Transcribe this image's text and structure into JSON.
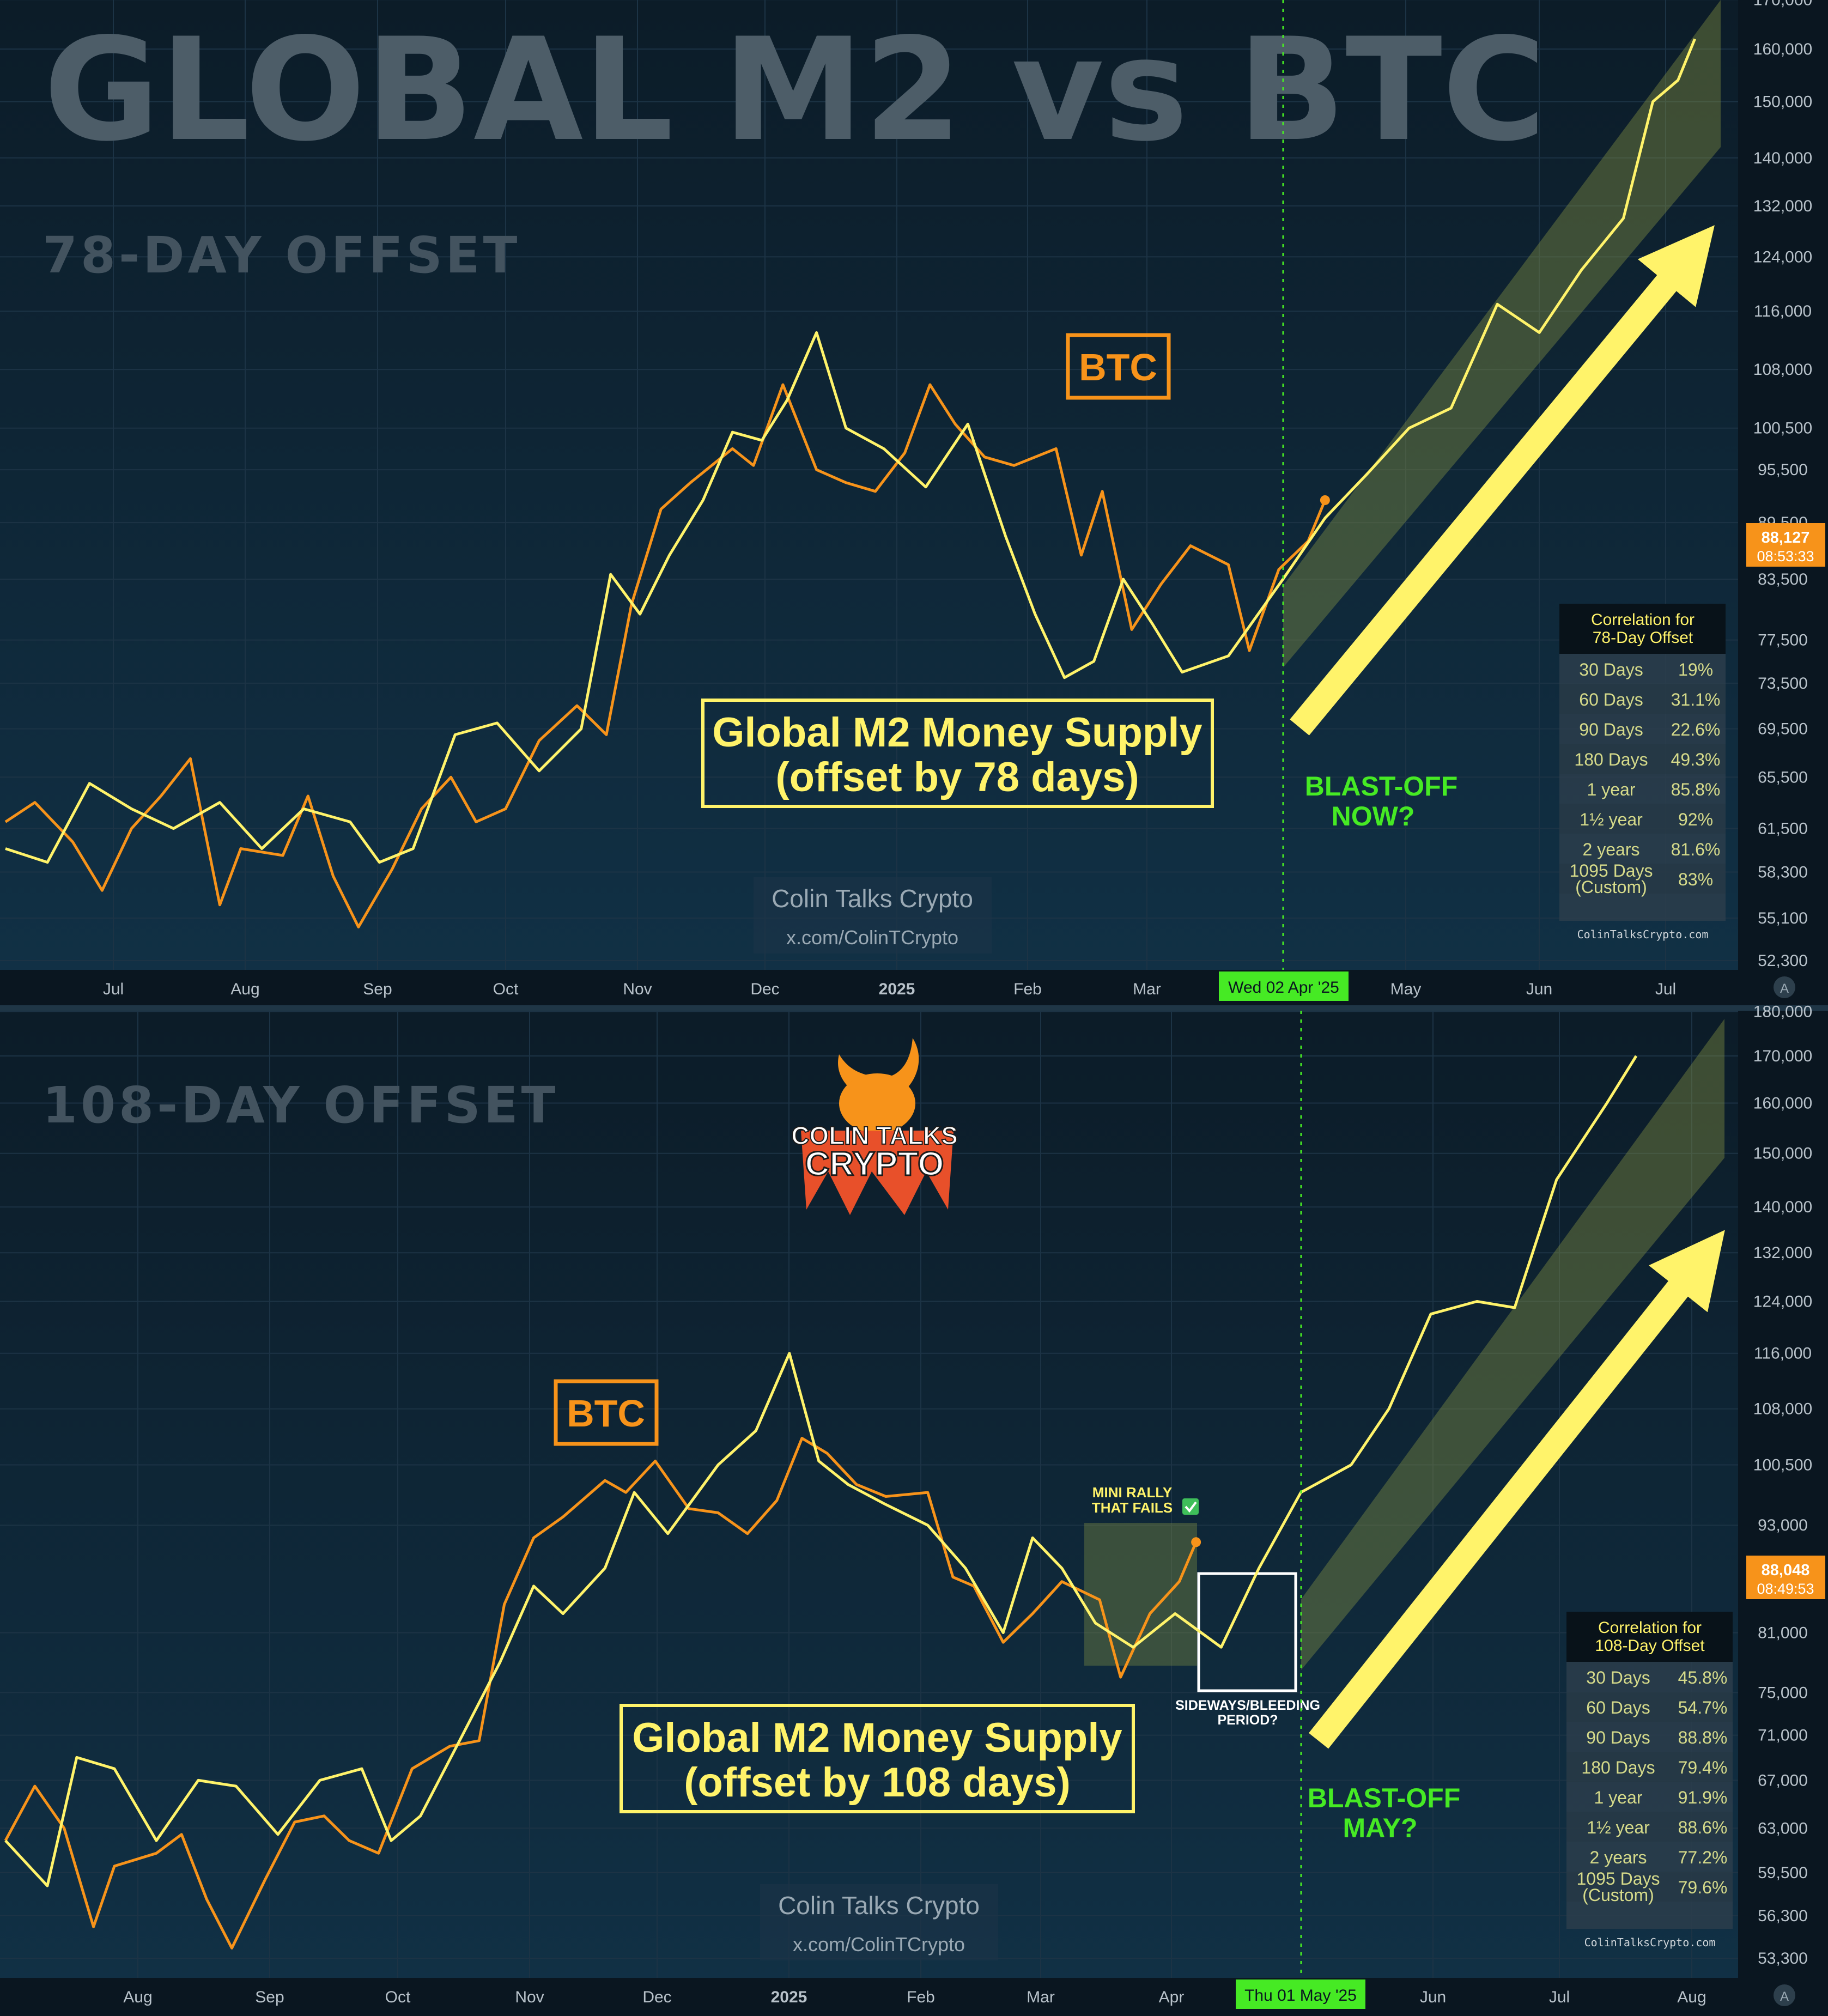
{
  "title": "GLOBAL M2 vs BTC",
  "colors": {
    "btc": "#f7931a",
    "m2": "#fff36a",
    "background": "#0f2230",
    "channel": "#8d9a45",
    "green": "#46ea24",
    "axis_bg": "#0a1620"
  },
  "logo": {
    "line1": "COLIN TALKS",
    "line2": "CRYPTO"
  },
  "panels": [
    {
      "offset_label": "78-DAY OFFSET",
      "btc_label": "BTC",
      "m2_label_line1": "Global M2 Money Supply",
      "m2_label_line2": "(offset by 78 days)",
      "blast_line1": "BLAST-OFF",
      "blast_line2": "NOW?",
      "watermark_name": "Colin Talks Crypto",
      "watermark_handle": "x.com/ColinTCrypto",
      "date_marker": "Wed 02 Apr '25",
      "price_tag_value": "88,127",
      "price_tag_time": "08:53:33",
      "x_ticks": [
        "Jul",
        "Aug",
        "Sep",
        "Oct",
        "Nov",
        "Dec",
        "2025",
        "Feb",
        "Mar",
        "May",
        "Jun",
        "Jul"
      ],
      "y_ticks": [
        "170,000",
        "160,000",
        "150,000",
        "140,000",
        "132,000",
        "124,000",
        "116,000",
        "108,000",
        "100,500",
        "95,500",
        "89,500",
        "83,500",
        "77,500",
        "73,500",
        "69,500",
        "65,500",
        "61,500",
        "58,300",
        "55,100",
        "52,300"
      ],
      "corr_title_line1": "Correlation for",
      "corr_title_line2": "78-Day Offset",
      "corr_rows": [
        {
          "period": "30 Days",
          "value": "19%"
        },
        {
          "period": "60 Days",
          "value": "31.1%"
        },
        {
          "period": "90 Days",
          "value": "22.6%"
        },
        {
          "period": "180 Days",
          "value": "49.3%"
        },
        {
          "period": "1 year",
          "value": "85.8%"
        },
        {
          "period": "1½ year",
          "value": "92%"
        },
        {
          "period": "2 years",
          "value": "81.6%"
        },
        {
          "period": "1095 Days (Custom)",
          "value": "83%"
        }
      ],
      "corr_footer": "ColinTalksCrypto.com"
    },
    {
      "offset_label": "108-DAY OFFSET",
      "btc_label": "BTC",
      "m2_label_line1": "Global M2 Money Supply",
      "m2_label_line2": "(offset by 108 days)",
      "blast_line1": "BLAST-OFF",
      "blast_line2": "MAY?",
      "watermark_name": "Colin Talks Crypto",
      "watermark_handle": "x.com/ColinTCrypto",
      "date_marker": "Thu 01 May '25",
      "price_tag_value": "88,048",
      "price_tag_time": "08:49:53",
      "mini_rally_line1": "MINI RALLY",
      "mini_rally_line2": "THAT FAILS",
      "sideways_line1": "SIDEWAYS/BLEEDING",
      "sideways_line2": "PERIOD?",
      "x_ticks": [
        "Aug",
        "Sep",
        "Oct",
        "Nov",
        "Dec",
        "2025",
        "Feb",
        "Mar",
        "Apr",
        "Jun",
        "Jul",
        "Aug"
      ],
      "y_ticks": [
        "180,000",
        "170,000",
        "160,000",
        "150,000",
        "140,000",
        "132,000",
        "124,000",
        "116,000",
        "108,000",
        "100,500",
        "93,000",
        "81,000",
        "75,000",
        "71,000",
        "67,000",
        "63,000",
        "59,500",
        "56,300",
        "53,300"
      ],
      "corr_title_line1": "Correlation for",
      "corr_title_line2": "108-Day Offset",
      "corr_rows": [
        {
          "period": "30 Days",
          "value": "45.8%"
        },
        {
          "period": "60 Days",
          "value": "54.7%"
        },
        {
          "period": "90 Days",
          "value": "88.8%"
        },
        {
          "period": "180 Days",
          "value": "79.4%"
        },
        {
          "period": "1 year",
          "value": "91.9%"
        },
        {
          "period": "1½ year",
          "value": "88.6%"
        },
        {
          "period": "2 years",
          "value": "77.2%"
        },
        {
          "period": "1095 Days (Custom)",
          "value": "79.6%"
        }
      ],
      "corr_footer": "ColinTalksCrypto.com"
    }
  ],
  "chart_data": [
    {
      "type": "line",
      "title": "GLOBAL M2 vs BTC",
      "subtitle": "78-DAY OFFSET",
      "x_range": [
        "2024-06-15",
        "2025-07-31"
      ],
      "y_scale": "log",
      "series": [
        {
          "name": "BTC",
          "points": [
            [
              "2024-06-15",
              62000
            ],
            [
              "2024-06-22",
              63500
            ],
            [
              "2024-07-01",
              60500
            ],
            [
              "2024-07-08",
              57000
            ],
            [
              "2024-07-15",
              61500
            ],
            [
              "2024-07-22",
              64000
            ],
            [
              "2024-07-29",
              67000
            ],
            [
              "2024-08-05",
              56000
            ],
            [
              "2024-08-10",
              60000
            ],
            [
              "2024-08-20",
              59500
            ],
            [
              "2024-08-26",
              64000
            ],
            [
              "2024-09-01",
              58000
            ],
            [
              "2024-09-07",
              54500
            ],
            [
              "2024-09-15",
              58500
            ],
            [
              "2024-09-22",
              63000
            ],
            [
              "2024-09-29",
              65500
            ],
            [
              "2024-10-05",
              62000
            ],
            [
              "2024-10-12",
              63000
            ],
            [
              "2024-10-20",
              68500
            ],
            [
              "2024-10-29",
              71500
            ],
            [
              "2024-11-05",
              69000
            ],
            [
              "2024-11-11",
              81000
            ],
            [
              "2024-11-18",
              91000
            ],
            [
              "2024-11-25",
              94000
            ],
            [
              "2024-12-05",
              98000
            ],
            [
              "2024-12-10",
              96000
            ],
            [
              "2024-12-17",
              106000
            ],
            [
              "2024-12-25",
              95500
            ],
            [
              "2025-01-01",
              94000
            ],
            [
              "2025-01-08",
              93000
            ],
            [
              "2025-01-15",
              97500
            ],
            [
              "2025-01-21",
              106000
            ],
            [
              "2025-01-27",
              101000
            ],
            [
              "2025-02-03",
              97000
            ],
            [
              "2025-02-10",
              96000
            ],
            [
              "2025-02-20",
              98000
            ],
            [
              "2025-02-26",
              86000
            ],
            [
              "2025-03-03",
              93000
            ],
            [
              "2025-03-10",
              78500
            ],
            [
              "2025-03-17",
              83000
            ],
            [
              "2025-03-24",
              87000
            ],
            [
              "2025-04-02",
              85000
            ],
            [
              "2025-04-07",
              76500
            ],
            [
              "2025-04-14",
              84500
            ],
            [
              "2025-04-21",
              87500
            ],
            [
              "2025-04-25",
              92000
            ]
          ]
        },
        {
          "name": "Global M2 Money Supply",
          "points": [
            [
              "2024-06-15",
              60000
            ],
            [
              "2024-06-25",
              59000
            ],
            [
              "2024-07-05",
              65000
            ],
            [
              "2024-07-15",
              63000
            ],
            [
              "2024-07-25",
              61500
            ],
            [
              "2024-08-05",
              63500
            ],
            [
              "2024-08-15",
              60000
            ],
            [
              "2024-08-25",
              63000
            ],
            [
              "2024-09-05",
              62000
            ],
            [
              "2024-09-12",
              59000
            ],
            [
              "2024-09-20",
              60000
            ],
            [
              "2024-09-30",
              69000
            ],
            [
              "2024-10-10",
              70000
            ],
            [
              "2024-10-20",
              66000
            ],
            [
              "2024-10-30",
              69500
            ],
            [
              "2024-11-06",
              84000
            ],
            [
              "2024-11-13",
              80000
            ],
            [
              "2024-11-20",
              86000
            ],
            [
              "2024-11-28",
              92000
            ],
            [
              "2024-12-05",
              100000
            ],
            [
              "2024-12-12",
              99000
            ],
            [
              "2024-12-18",
              104000
            ],
            [
              "2024-12-25",
              113000
            ],
            [
              "2025-01-01",
              100500
            ],
            [
              "2025-01-10",
              98000
            ],
            [
              "2025-01-20",
              93500
            ],
            [
              "2025-01-30",
              101000
            ],
            [
              "2025-02-08",
              88000
            ],
            [
              "2025-02-15",
              80000
            ],
            [
              "2025-02-22",
              74000
            ],
            [
              "2025-03-01",
              75500
            ],
            [
              "2025-03-08",
              83500
            ],
            [
              "2025-03-15",
              79000
            ],
            [
              "2025-03-22",
              74500
            ],
            [
              "2025-04-02",
              76000
            ],
            [
              "2025-04-15",
              83500
            ],
            [
              "2025-04-25",
              90000
            ],
            [
              "2025-05-05",
              95000
            ],
            [
              "2025-05-15",
              100500
            ],
            [
              "2025-05-25",
              103000
            ],
            [
              "2025-06-05",
              117000
            ],
            [
              "2025-06-15",
              113000
            ],
            [
              "2025-06-25",
              122000
            ],
            [
              "2025-07-05",
              130000
            ],
            [
              "2025-07-12",
              150000
            ],
            [
              "2025-07-18",
              154000
            ],
            [
              "2025-07-22",
              162000
            ]
          ]
        }
      ],
      "correlation": {
        "30 Days": 19,
        "60 Days": 31.1,
        "90 Days": 22.6,
        "180 Days": 49.3,
        "1 year": 85.8,
        "1½ year": 92,
        "2 years": 81.6,
        "1095 Days (Custom)": 83
      }
    },
    {
      "type": "line",
      "title": "GLOBAL M2 vs BTC",
      "subtitle": "108-DAY OFFSET",
      "x_range": [
        "2024-07-15",
        "2025-08-31"
      ],
      "y_scale": "log",
      "series": [
        {
          "name": "BTC",
          "points": [
            [
              "2024-07-15",
              62000
            ],
            [
              "2024-07-22",
              66500
            ],
            [
              "2024-07-29",
              63000
            ],
            [
              "2024-08-05",
              55500
            ],
            [
              "2024-08-10",
              60000
            ],
            [
              "2024-08-20",
              61000
            ],
            [
              "2024-08-26",
              62500
            ],
            [
              "2024-09-01",
              57500
            ],
            [
              "2024-09-07",
              54000
            ],
            [
              "2024-09-15",
              59000
            ],
            [
              "2024-09-22",
              63500
            ],
            [
              "2024-09-29",
              64000
            ],
            [
              "2024-10-05",
              62000
            ],
            [
              "2024-10-12",
              61000
            ],
            [
              "2024-10-20",
              68000
            ],
            [
              "2024-10-29",
              70000
            ],
            [
              "2024-11-05",
              70500
            ],
            [
              "2024-11-11",
              84000
            ],
            [
              "2024-11-18",
              91500
            ],
            [
              "2024-11-25",
              94000
            ],
            [
              "2024-12-05",
              98500
            ],
            [
              "2024-12-10",
              97000
            ],
            [
              "2024-12-17",
              101000
            ],
            [
              "2024-12-25",
              95000
            ],
            [
              "2025-01-01",
              94500
            ],
            [
              "2025-01-08",
              92000
            ],
            [
              "2025-01-15",
              96000
            ],
            [
              "2025-01-21",
              104000
            ],
            [
              "2025-01-27",
              102000
            ],
            [
              "2025-02-03",
              98000
            ],
            [
              "2025-02-10",
              96500
            ],
            [
              "2025-02-20",
              97000
            ],
            [
              "2025-02-26",
              87000
            ],
            [
              "2025-03-03",
              86000
            ],
            [
              "2025-03-10",
              80000
            ],
            [
              "2025-03-17",
              83000
            ],
            [
              "2025-03-24",
              86500
            ],
            [
              "2025-04-02",
              84500
            ],
            [
              "2025-04-07",
              76500
            ],
            [
              "2025-04-14",
              83000
            ],
            [
              "2025-04-21",
              86500
            ],
            [
              "2025-04-25",
              91000
            ]
          ]
        },
        {
          "name": "Global M2 Money Supply",
          "points": [
            [
              "2024-07-15",
              62000
            ],
            [
              "2024-07-25",
              58500
            ],
            [
              "2024-08-01",
              69000
            ],
            [
              "2024-08-10",
              68000
            ],
            [
              "2024-08-20",
              62000
            ],
            [
              "2024-08-30",
              67000
            ],
            [
              "2024-09-08",
              66500
            ],
            [
              "2024-09-18",
              62500
            ],
            [
              "2024-09-28",
              67000
            ],
            [
              "2024-10-08",
              68000
            ],
            [
              "2024-10-15",
              62000
            ],
            [
              "2024-10-22",
              64000
            ],
            [
              "2024-11-01",
              71000
            ],
            [
              "2024-11-10",
              78000
            ],
            [
              "2024-11-18",
              86000
            ],
            [
              "2024-11-25",
              83000
            ],
            [
              "2024-12-05",
              88000
            ],
            [
              "2024-12-12",
              97000
            ],
            [
              "2024-12-20",
              92000
            ],
            [
              "2025-01-01",
              100500
            ],
            [
              "2025-01-10",
              105000
            ],
            [
              "2025-01-18",
              116000
            ],
            [
              "2025-01-25",
              101000
            ],
            [
              "2025-02-01",
              98000
            ],
            [
              "2025-02-10",
              95500
            ],
            [
              "2025-02-20",
              93000
            ],
            [
              "2025-03-01",
              88000
            ],
            [
              "2025-03-10",
              81000
            ],
            [
              "2025-03-17",
              91500
            ],
            [
              "2025-03-24",
              88000
            ],
            [
              "2025-04-01",
              82000
            ],
            [
              "2025-04-10",
              79500
            ],
            [
              "2025-04-20",
              83000
            ],
            [
              "2025-05-01",
              79500
            ],
            [
              "2025-05-10",
              88000
            ],
            [
              "2025-05-20",
              97000
            ],
            [
              "2025-06-01",
              100500
            ],
            [
              "2025-06-10",
              108000
            ],
            [
              "2025-06-20",
              122000
            ],
            [
              "2025-07-01",
              124000
            ],
            [
              "2025-07-10",
              123000
            ],
            [
              "2025-07-20",
              145000
            ],
            [
              "2025-08-01",
              160000
            ],
            [
              "2025-08-08",
              170000
            ]
          ]
        }
      ],
      "correlation": {
        "30 Days": 45.8,
        "60 Days": 54.7,
        "90 Days": 88.8,
        "180 Days": 79.4,
        "1 year": 91.9,
        "1½ year": 88.6,
        "2 years": 77.2,
        "1095 Days (Custom)": 79.6
      }
    }
  ]
}
